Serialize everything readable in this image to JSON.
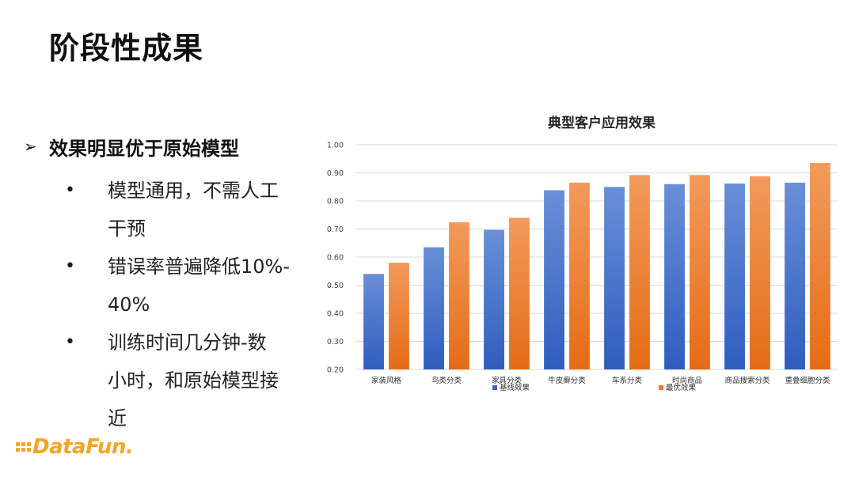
{
  "slide": {
    "title": "阶段性成果",
    "main_bullet": "效果明显优于原始模型",
    "sub_bullets": [
      [
        "模型通用，不需人工",
        "干预"
      ],
      [
        "错误率普遍降低10%-",
        "40%"
      ],
      [
        "训练时间几分钟-数",
        "小时，和原始模型接",
        "近"
      ]
    ]
  },
  "logo": {
    "text": "DataFun."
  },
  "colors": {
    "series1": "#4472C4",
    "series2": "#ED7D31",
    "logo": "#F5A623"
  },
  "chart_data": {
    "type": "bar",
    "title": "典型客户应用效果",
    "categories": [
      "家装风格",
      "鸟类分类",
      "家具分类",
      "牛皮癣分类",
      "车系分类",
      "时尚商品",
      "商品搜索分类",
      "重叠细胞分类"
    ],
    "series": [
      {
        "name": "基线效果",
        "values": [
          0.54,
          0.635,
          0.697,
          0.838,
          0.85,
          0.86,
          0.862,
          0.865
        ]
      },
      {
        "name": "最优效果",
        "values": [
          0.58,
          0.724,
          0.74,
          0.865,
          0.892,
          0.892,
          0.888,
          0.935
        ]
      }
    ],
    "ylim": [
      0.2,
      1.0
    ],
    "yticks": [
      "0.20",
      "0.30",
      "0.40",
      "0.50",
      "0.60",
      "0.70",
      "0.80",
      "0.90",
      "1.00"
    ],
    "grid": true,
    "legend": "bottom"
  }
}
